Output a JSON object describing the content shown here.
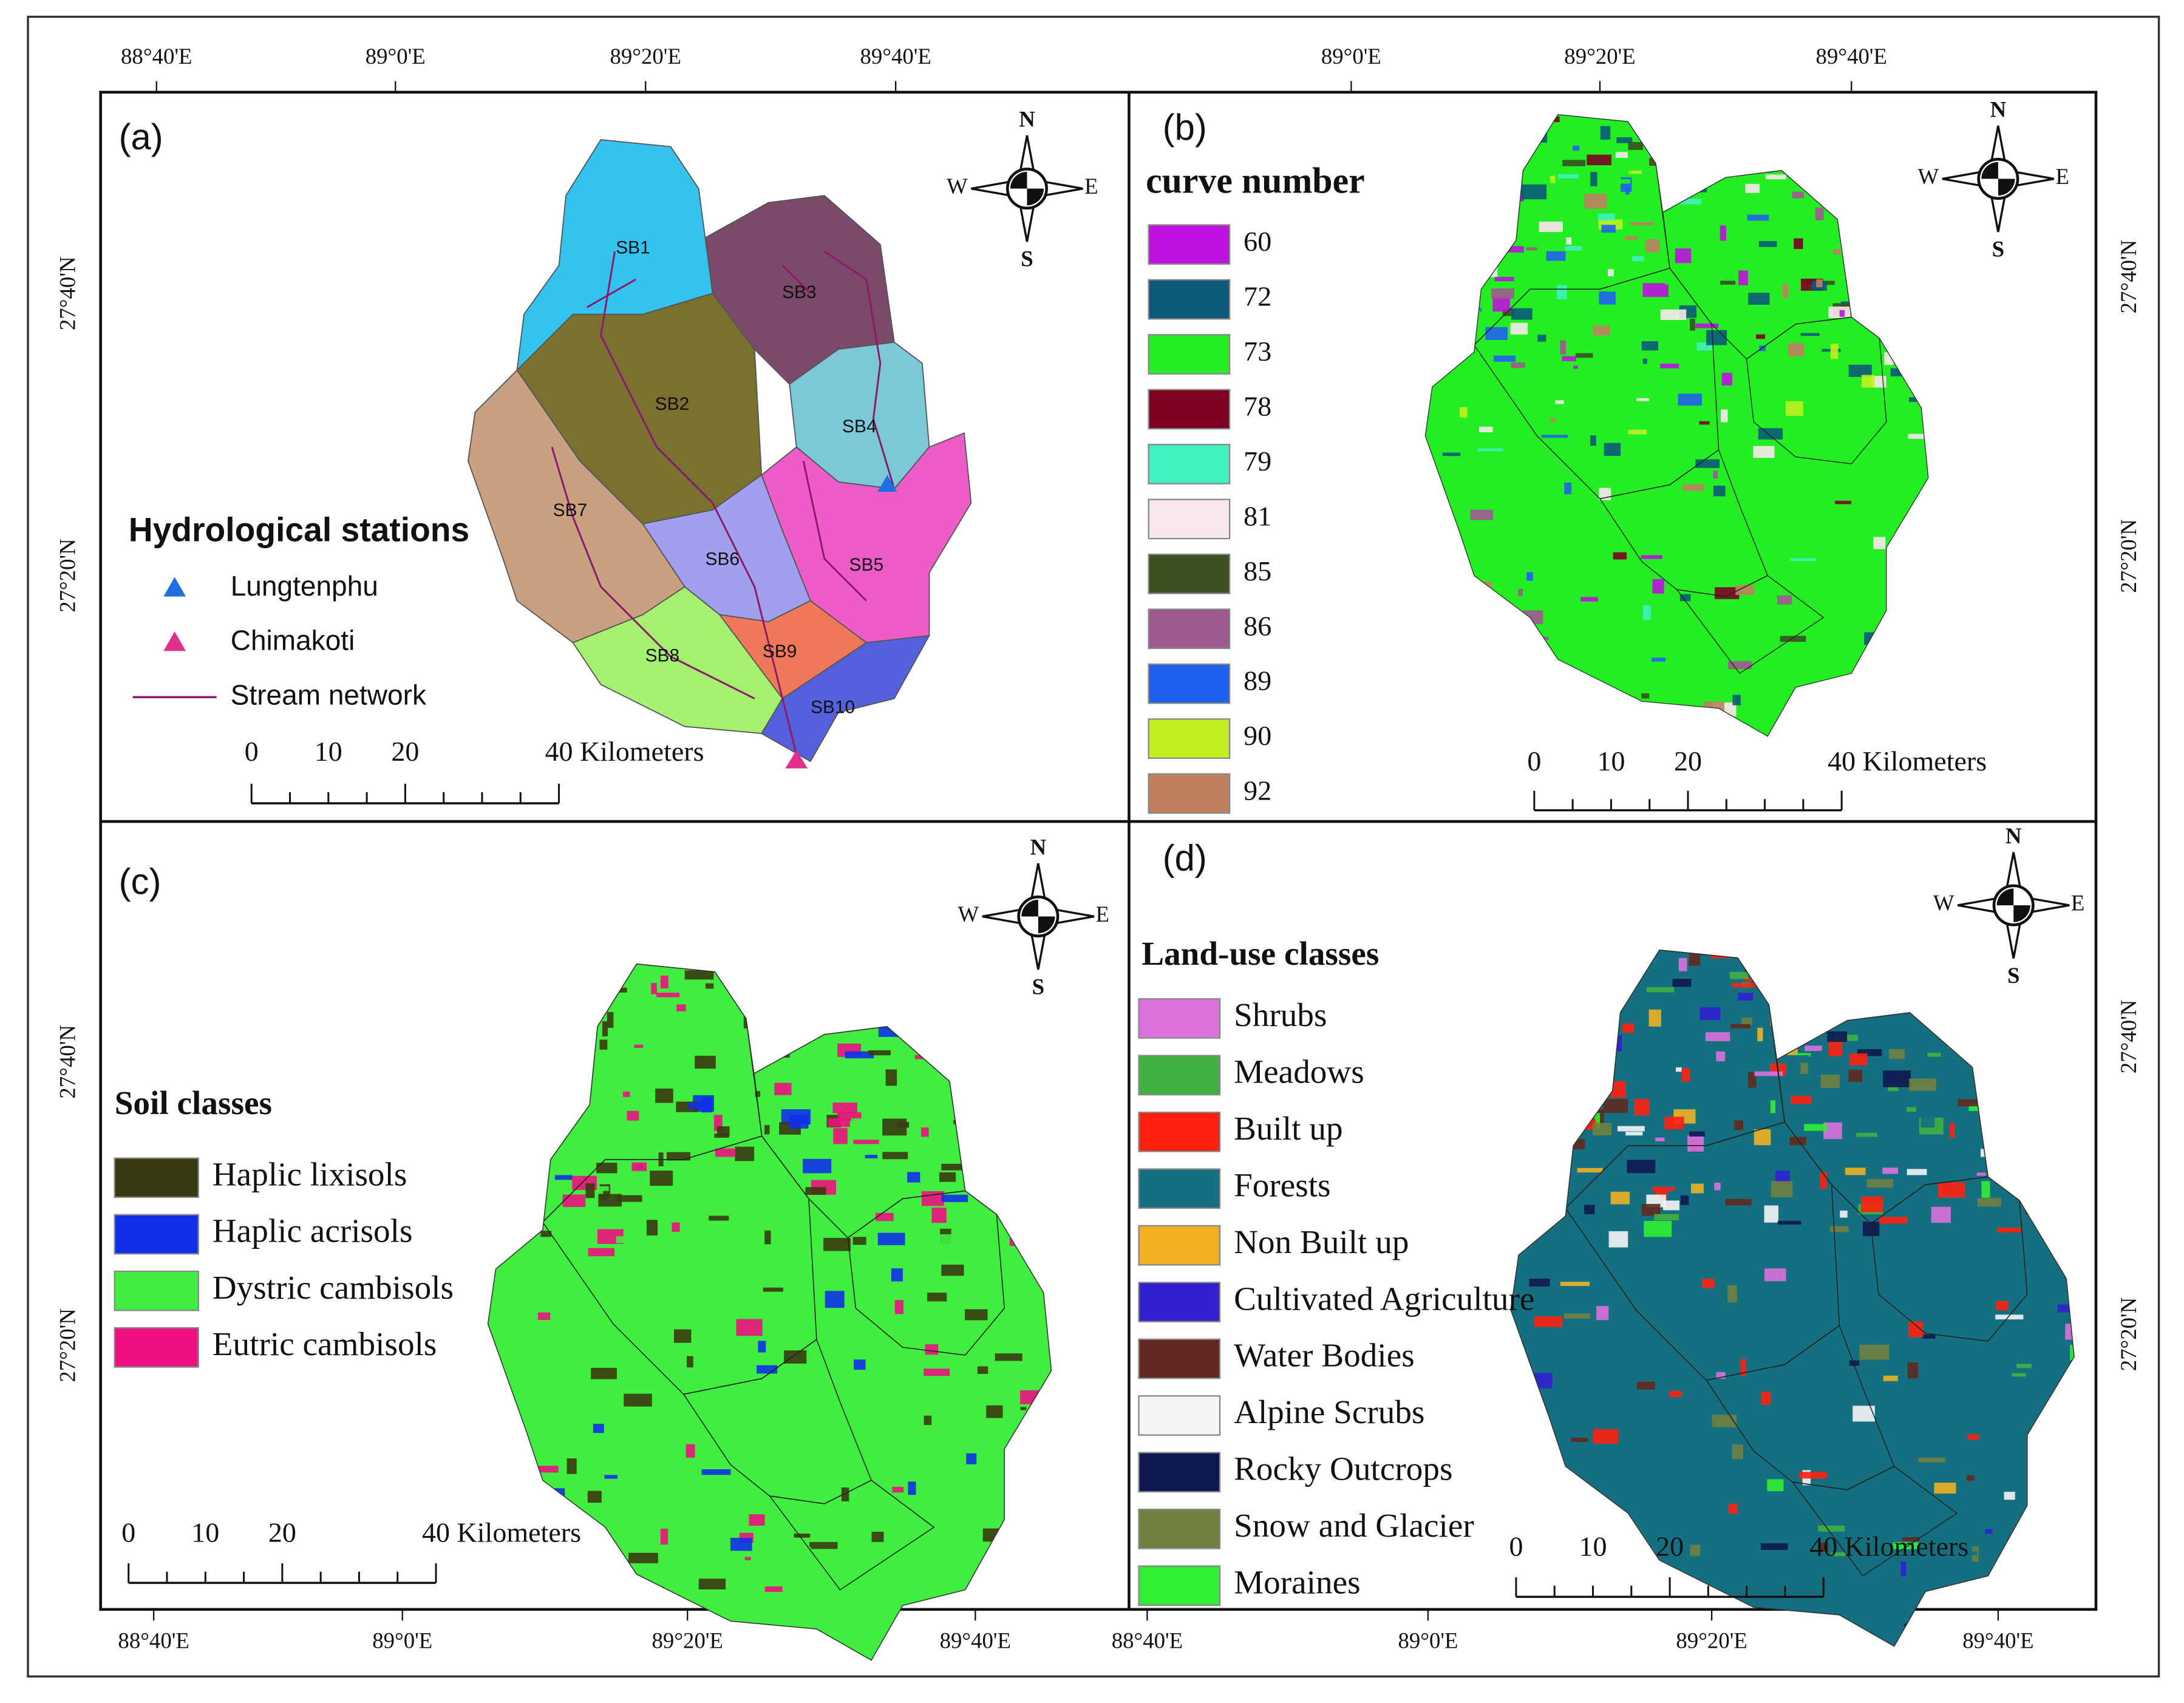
{
  "axes": {
    "top": [
      "88°40'E",
      "89°0'E",
      "89°20'E",
      "89°40'E",
      "89°0'E",
      "89°20'E",
      "89°40'E"
    ],
    "bottom": [
      "88°40'E",
      "89°0'E",
      "89°20'E",
      "89°40'E",
      "88°40'E",
      "89°0'E",
      "89°20'E",
      "89°40'E"
    ],
    "left": [
      "27°40'N",
      "27°20'N",
      "27°40'N",
      "27°20'N"
    ],
    "right": [
      "27°40'N",
      "27°20'N",
      "27°40'N",
      "27°20'N"
    ]
  },
  "panels": [
    {
      "label": "(a)",
      "compass": [
        "N",
        "S",
        "W",
        "E"
      ],
      "scale": [
        "0",
        "10",
        "20",
        "40 Kilometers"
      ],
      "legend": {
        "title": "Hydrological stations",
        "items": [
          {
            "name": "Lungtenphu",
            "color": "#1f6fe0"
          },
          {
            "name": "Chimakoti",
            "color": "#e0308a"
          },
          {
            "name": "Stream network",
            "color": "#8b1a6b"
          }
        ]
      },
      "subbasins": [
        {
          "name": "SB1",
          "color": "#33c3ee"
        },
        {
          "name": "SB2",
          "color": "#7a7030"
        },
        {
          "name": "SB3",
          "color": "#7b4a6a"
        },
        {
          "name": "SB4",
          "color": "#7cc8d8"
        },
        {
          "name": "SB5",
          "color": "#ee5cc8"
        },
        {
          "name": "SB6",
          "color": "#a0a0ee"
        },
        {
          "name": "SB7",
          "color": "#c9a080"
        },
        {
          "name": "SB8",
          "color": "#a6f070"
        },
        {
          "name": "SB9",
          "color": "#f0785a"
        },
        {
          "name": "SB10",
          "color": "#5560dd"
        }
      ]
    },
    {
      "label": "(b)",
      "compass": [
        "N",
        "S",
        "W",
        "E"
      ],
      "scale": [
        "0",
        "10",
        "20",
        "40 Kilometers"
      ],
      "legend": {
        "title": "curve number",
        "items": [
          {
            "name": "60",
            "color": "#c010e0"
          },
          {
            "name": "72",
            "color": "#0a5a78"
          },
          {
            "name": "73",
            "color": "#22ee22"
          },
          {
            "name": "78",
            "color": "#800020"
          },
          {
            "name": "79",
            "color": "#40f0c0"
          },
          {
            "name": "81",
            "color": "#f8e8ec"
          },
          {
            "name": "85",
            "color": "#3a5020"
          },
          {
            "name": "86",
            "color": "#a05890"
          },
          {
            "name": "89",
            "color": "#2060f0"
          },
          {
            "name": "90",
            "color": "#c0f020"
          },
          {
            "name": "92",
            "color": "#c08060"
          }
        ]
      }
    },
    {
      "label": "(c)",
      "compass": [
        "N",
        "S",
        "W",
        "E"
      ],
      "scale": [
        "0",
        "10",
        "20",
        "40 Kilometers"
      ],
      "legend": {
        "title": "Soil classes",
        "items": [
          {
            "name": "Haplic lixisols",
            "color": "#3a3a10"
          },
          {
            "name": "Haplic acrisols",
            "color": "#1030e8"
          },
          {
            "name": "Dystric cambisols",
            "color": "#40ee40"
          },
          {
            "name": "Eutric cambisols",
            "color": "#ee1080"
          }
        ]
      }
    },
    {
      "label": "(d)",
      "compass": [
        "N",
        "S",
        "W",
        "E"
      ],
      "scale": [
        "0",
        "10",
        "20",
        "40 Kilometers"
      ],
      "legend": {
        "title": "Land-use classes",
        "items": [
          {
            "name": "Shrubs",
            "color": "#dd70dd"
          },
          {
            "name": "Meadows",
            "color": "#40b040"
          },
          {
            "name": "Built up",
            "color": "#ff2010"
          },
          {
            "name": "Forests",
            "color": "#147080"
          },
          {
            "name": "Non Built up",
            "color": "#f0b020"
          },
          {
            "name": "Cultivated Agriculture",
            "color": "#3020d0"
          },
          {
            "name": "Water Bodies",
            "color": "#602820"
          },
          {
            "name": "Alpine Scrubs",
            "color": "#f4f4f4"
          },
          {
            "name": "Rocky Outcrops",
            "color": "#101850"
          },
          {
            "name": "Snow and Glacier",
            "color": "#708040"
          },
          {
            "name": "Moraines",
            "color": "#30ee30"
          }
        ]
      }
    }
  ]
}
